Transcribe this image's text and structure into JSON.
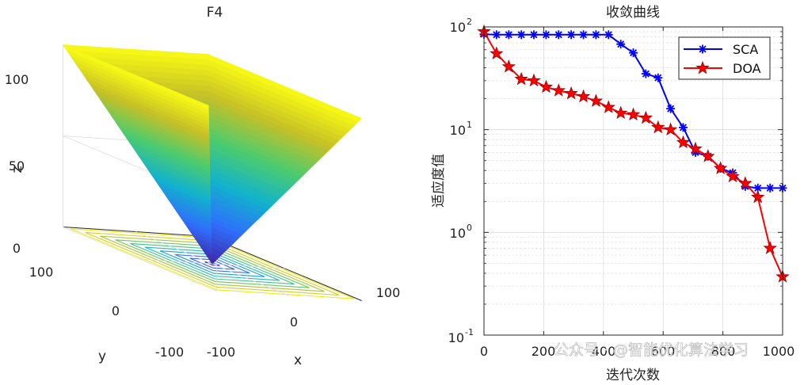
{
  "watermark": "公众号 · @智能优化算法学习",
  "chart_data": [
    {
      "type": "surface3d",
      "title": "F4",
      "function": "z = max(|x|, |y|)",
      "xlabel": "x",
      "ylabel": "y",
      "zlabel": "z",
      "xlim": [
        -100,
        100
      ],
      "ylim": [
        -100,
        100
      ],
      "zlim": [
        0,
        100
      ],
      "x_ticks": [
        "-100",
        "0",
        "100"
      ],
      "y_ticks": [
        "-100",
        "0",
        "100"
      ],
      "z_ticks": [
        "0",
        "50",
        "100"
      ],
      "contour_levels": [
        5,
        15,
        25,
        35,
        45,
        55,
        65,
        75,
        85,
        95
      ],
      "colormap": [
        "#3e26a8",
        "#2f6ffb",
        "#12b2cd",
        "#4ccc6e",
        "#c6c026",
        "#f9fb15"
      ]
    },
    {
      "type": "line",
      "title": "收敛曲线",
      "xlabel": "迭代次数",
      "ylabel": "适应度值",
      "xlim": [
        0,
        1000
      ],
      "ylim": [
        0.1,
        100
      ],
      "yscale": "log",
      "x_ticks": [
        "0",
        "200",
        "400",
        "600",
        "800",
        "1000"
      ],
      "y_tick_bases": [
        "10",
        "10",
        "10",
        "10"
      ],
      "y_tick_exps": [
        "2",
        "1",
        "0",
        "-1"
      ],
      "y_tick_values": [
        100,
        10,
        1,
        0.1
      ],
      "grid": true,
      "legend": "top-right",
      "series": [
        {
          "name": "SCA",
          "color": "#0000ff",
          "marker": "asterisk",
          "x": [
            0,
            42,
            83,
            125,
            167,
            208,
            250,
            292,
            333,
            375,
            417,
            458,
            500,
            542,
            583,
            625,
            667,
            708,
            750,
            792,
            833,
            875,
            917,
            958,
            1000
          ],
          "y": [
            85,
            84,
            84,
            84,
            84,
            84,
            84,
            84,
            84,
            84,
            84,
            68,
            56,
            35,
            32,
            16,
            10.5,
            6,
            5.5,
            4.2,
            3.8,
            2.8,
            2.7,
            2.7,
            2.7
          ]
        },
        {
          "name": "DOA",
          "color": "#ff0000",
          "marker": "pentagram",
          "x": [
            0,
            42,
            83,
            125,
            167,
            208,
            250,
            292,
            333,
            375,
            417,
            458,
            500,
            542,
            583,
            625,
            667,
            708,
            750,
            792,
            833,
            875,
            917,
            958,
            1000
          ],
          "y": [
            90,
            55,
            41,
            31,
            30,
            26,
            24,
            22.5,
            21,
            19,
            16.5,
            14.5,
            14,
            13,
            10.5,
            10,
            7.5,
            6.5,
            5.5,
            4.2,
            3.5,
            3.0,
            2.2,
            0.7,
            0.37
          ]
        }
      ]
    }
  ]
}
